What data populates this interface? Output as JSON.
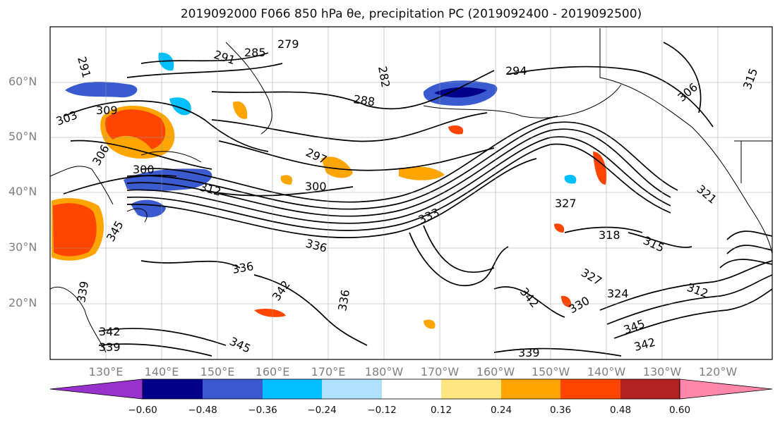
{
  "title": "2019092000 F066 850 hPa θe, precipitation PC (2019092400 - 2019092500)",
  "lat_labels": [
    "60°N",
    "50°N",
    "40°N",
    "30°N",
    "20°N"
  ],
  "lon_labels": [
    "130°E",
    "140°E",
    "150°E",
    "160°E",
    "170°E",
    "180°W",
    "170°W",
    "160°W",
    "150°W",
    "140°W",
    "130°W",
    "120°W"
  ],
  "contour_labels": [
    "291",
    "285",
    "279",
    "282",
    "294",
    "288",
    "306",
    "315",
    "291",
    "303",
    "309",
    "306",
    "300",
    "297",
    "300",
    "312",
    "327",
    "318",
    "315",
    "336",
    "336",
    "345",
    "342",
    "336",
    "339",
    "342",
    "339",
    "345",
    "342",
    "330",
    "327",
    "324",
    "345",
    "342",
    "339",
    "312",
    "321",
    "333"
  ],
  "colorbar": {
    "colors": [
      "#9932cc",
      "#00008b",
      "#3a5bd0",
      "#00bfff",
      "#b0e2ff",
      "#ffffff",
      "#ffe680",
      "#ffa500",
      "#ff4500",
      "#b22222",
      "#ff88aa"
    ],
    "ticks": [
      "−0.60",
      "−0.48",
      "−0.36",
      "−0.24",
      "−0.12",
      "0.12",
      "0.24",
      "0.36",
      "0.48",
      "0.60"
    ]
  }
}
